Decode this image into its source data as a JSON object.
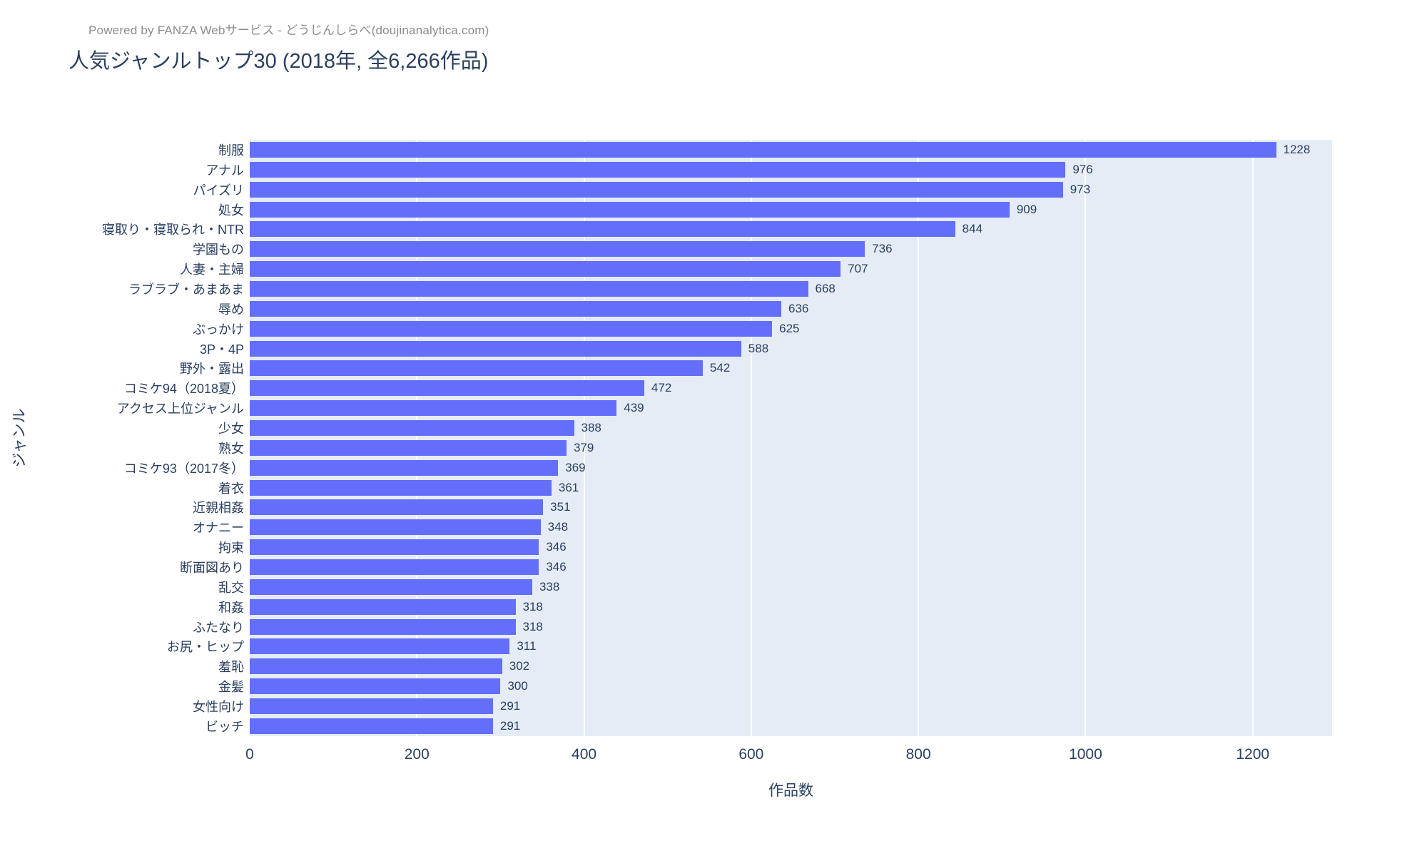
{
  "header": {
    "credit": "Powered by FANZA Webサービス - どうじんしらべ(doujinanalytica.com)"
  },
  "chart_data": {
    "type": "bar",
    "orientation": "horizontal",
    "title": "人気ジャンルトップ30 (2018年, 全6,266作品)",
    "xlabel": "作品数",
    "ylabel": "ジャンル",
    "xlim": [
      0,
      1295
    ],
    "xticks": [
      0,
      200,
      400,
      600,
      800,
      1000,
      1200
    ],
    "grid": true,
    "legend": false,
    "categories": [
      "制服",
      "アナル",
      "パイズリ",
      "処女",
      "寝取り・寝取られ・NTR",
      "学園もの",
      "人妻・主婦",
      "ラブラブ・あまあま",
      "辱め",
      "ぶっかけ",
      "3P・4P",
      "野外・露出",
      "コミケ94（2018夏）",
      "アクセス上位ジャンル",
      "少女",
      "熟女",
      "コミケ93（2017冬）",
      "着衣",
      "近親相姦",
      "オナニー",
      "拘束",
      "断面図あり",
      "乱交",
      "和姦",
      "ふたなり",
      "お尻・ヒップ",
      "羞恥",
      "金髪",
      "女性向け",
      "ビッチ"
    ],
    "values": [
      1228,
      976,
      973,
      909,
      844,
      736,
      707,
      668,
      636,
      625,
      588,
      542,
      472,
      439,
      388,
      379,
      369,
      361,
      351,
      348,
      346,
      346,
      338,
      318,
      318,
      311,
      302,
      300,
      291,
      291
    ],
    "colors": {
      "bar": "#636EFA",
      "plot_background": "#E5ECF6",
      "gridline": "#FFFFFF",
      "text": "#2A3F5F",
      "credit_text": "#8C8C8C"
    }
  }
}
